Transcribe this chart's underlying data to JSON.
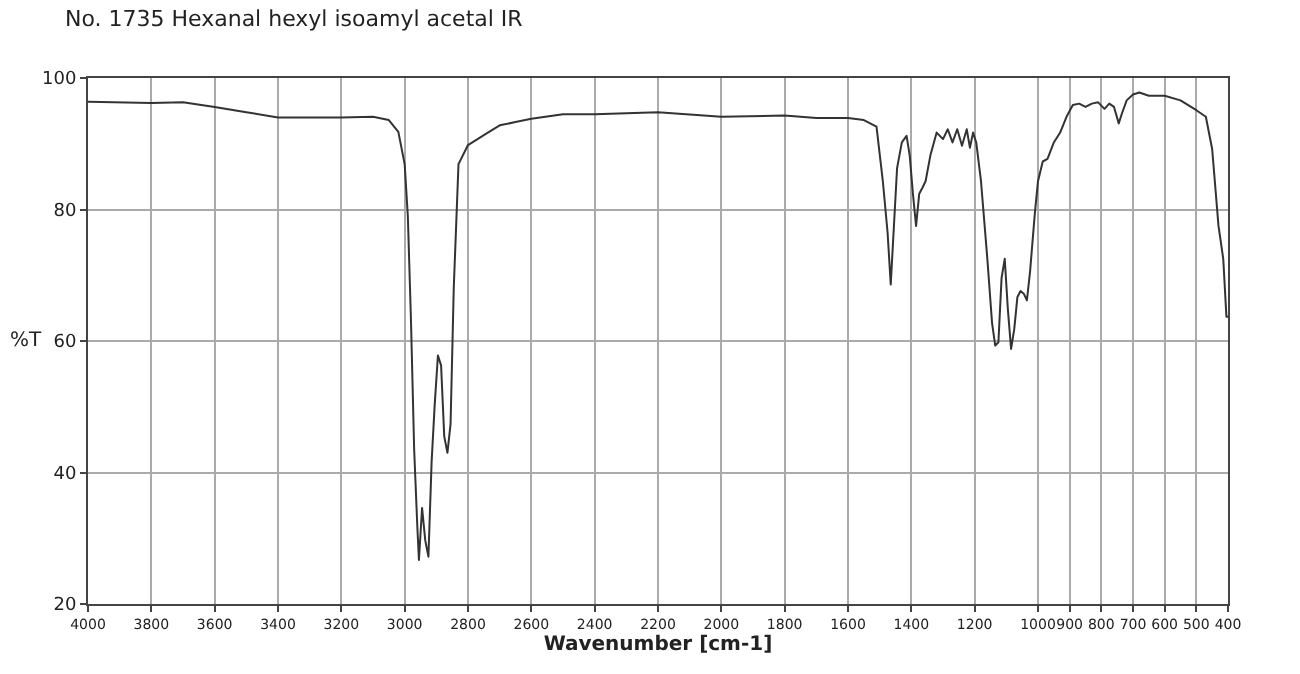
{
  "chart_data": {
    "type": "line",
    "title": "No. 1735 Hexanal hexyl isoamyl acetal IR",
    "xlabel": "Wavenumber [cm-1]",
    "ylabel": "%T",
    "xlim": [
      4000,
      400
    ],
    "xticks": [
      4000,
      3800,
      3600,
      3400,
      3200,
      3000,
      2800,
      2600,
      2400,
      2200,
      2000,
      1800,
      1600,
      1400,
      1200,
      1000,
      900,
      800,
      700,
      600,
      500,
      400
    ],
    "ylim": [
      20,
      100
    ],
    "yticks": [
      20,
      40,
      60,
      80,
      100
    ],
    "grid": true,
    "marker": "none",
    "line_style": "solid",
    "series": [
      {
        "color": "#333333",
        "x": [
          4000,
          3800,
          3700,
          3600,
          3500,
          3400,
          3300,
          3200,
          3100,
          3050,
          3020,
          3000,
          2990,
          2980,
          2970,
          2960,
          2955,
          2945,
          2935,
          2925,
          2915,
          2905,
          2895,
          2885,
          2875,
          2865,
          2855,
          2845,
          2830,
          2800,
          2750,
          2700,
          2650,
          2600,
          2500,
          2400,
          2200,
          2000,
          1800,
          1700,
          1600,
          1550,
          1510,
          1490,
          1475,
          1465,
          1455,
          1445,
          1430,
          1415,
          1405,
          1395,
          1385,
          1375,
          1365,
          1355,
          1340,
          1320,
          1300,
          1285,
          1270,
          1255,
          1240,
          1225,
          1215,
          1205,
          1195,
          1180,
          1160,
          1145,
          1135,
          1125,
          1115,
          1105,
          1095,
          1085,
          1075,
          1065,
          1055,
          1045,
          1035,
          1025,
          1010,
          1000,
          985,
          970,
          950,
          930,
          910,
          890,
          870,
          850,
          830,
          810,
          790,
          775,
          760,
          745,
          735,
          720,
          700,
          680,
          650,
          600,
          550,
          500,
          470,
          450,
          430,
          415,
          405,
          400
        ],
        "values": [
          96.4,
          96.2,
          96.3,
          95.6,
          94.8,
          94.0,
          94,
          94,
          94.1,
          93.6,
          91.8,
          86.9,
          79,
          63,
          43.5,
          31.7,
          26.7,
          34.6,
          29.7,
          27.2,
          41.5,
          50.4,
          57.8,
          56.3,
          45.5,
          43,
          47.4,
          68,
          86.9,
          89.8,
          91.3,
          92.8,
          93.3,
          93.8,
          94.5,
          94.5,
          94.8,
          94.1,
          94.3,
          93.9,
          93.9,
          93.6,
          92.6,
          84.3,
          76.5,
          68.6,
          77.5,
          86.3,
          90.2,
          91.2,
          88.2,
          82.4,
          77.5,
          82.4,
          83.3,
          84.3,
          88.2,
          91.7,
          90.7,
          92.2,
          90.2,
          92.2,
          89.7,
          92.2,
          89.4,
          91.7,
          90.2,
          84.3,
          72.5,
          62.7,
          59.3,
          59.8,
          69.6,
          72.5,
          64.7,
          58.8,
          61.8,
          66.7,
          67.6,
          67.2,
          66.2,
          70.6,
          79.4,
          84.3,
          87.3,
          87.7,
          90.2,
          91.7,
          94.1,
          95.9,
          96.1,
          95.6,
          96.1,
          96.3,
          95.3,
          96.1,
          95.6,
          93.1,
          94.6,
          96.6,
          97.5,
          97.8,
          97.3,
          97.3,
          96.6,
          95.1,
          94.1,
          89.2,
          77.5,
          72.5,
          63.7,
          63.7
        ]
      }
    ]
  }
}
